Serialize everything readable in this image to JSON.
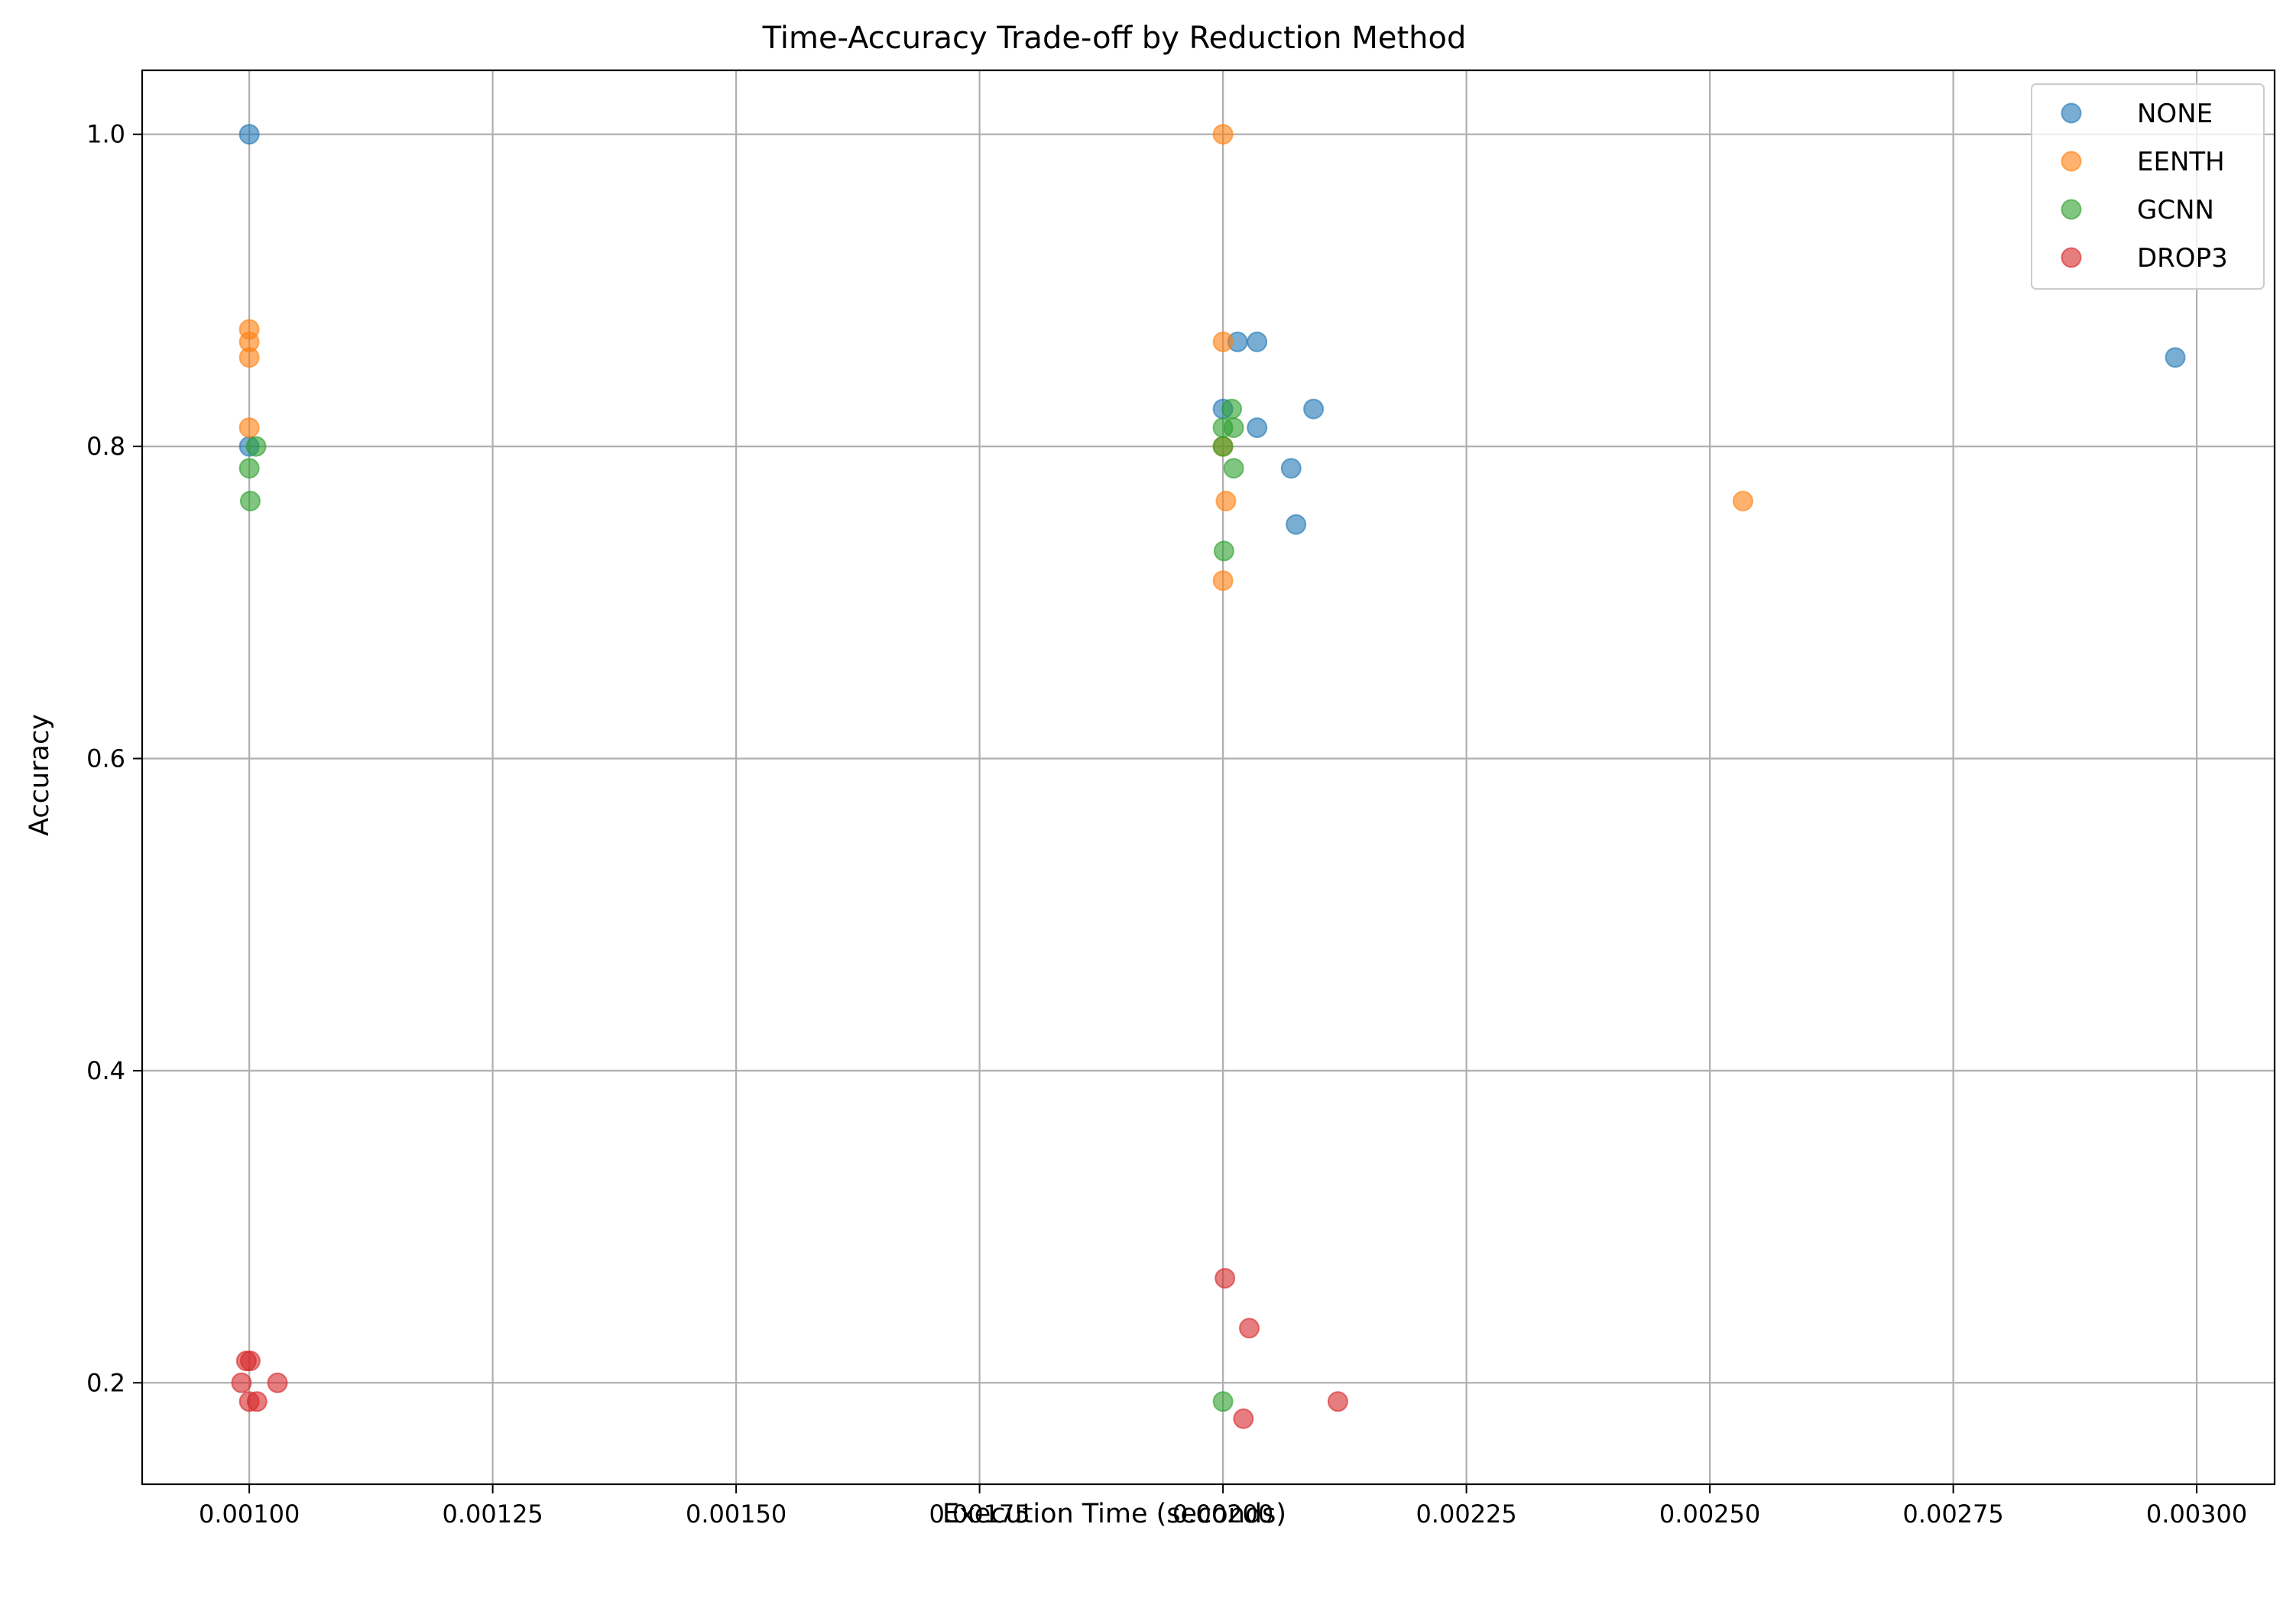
{
  "chart_data": {
    "type": "scatter",
    "title": "Time-Accuracy Trade-off by Reduction Method",
    "xlabel": "Execution Time (seconds)",
    "ylabel": "Accuracy",
    "xlim": [
      0.00089,
      0.00308
    ],
    "ylim": [
      0.135,
      1.041
    ],
    "xticks": [
      0.001,
      0.00125,
      0.0015,
      0.00175,
      0.002,
      0.00225,
      0.0025,
      0.00275,
      0.003
    ],
    "xtick_labels": [
      "0.00100",
      "0.00125",
      "0.00150",
      "0.00175",
      "0.00200",
      "0.00225",
      "0.00250",
      "0.00275",
      "0.00300"
    ],
    "yticks": [
      0.2,
      0.4,
      0.6,
      0.8,
      1.0
    ],
    "ytick_labels": [
      "0.2",
      "0.4",
      "0.6",
      "0.8",
      "1.0"
    ],
    "grid": true,
    "legend_position": "top-right",
    "marker_alpha": 0.6,
    "series": [
      {
        "name": "NONE",
        "color": "#1f77b4",
        "points": [
          [
            0.001,
            1.0
          ],
          [
            0.001,
            0.8
          ],
          [
            0.002,
            0.824
          ],
          [
            0.002015,
            0.867
          ],
          [
            0.002035,
            0.867
          ],
          [
            0.002035,
            0.812
          ],
          [
            0.00207,
            0.786
          ],
          [
            0.002075,
            0.75
          ],
          [
            0.002093,
            0.824
          ],
          [
            0.002978,
            0.857
          ]
        ]
      },
      {
        "name": "EENTH",
        "color": "#ff7f0e",
        "points": [
          [
            0.001,
            0.875
          ],
          [
            0.001,
            0.867
          ],
          [
            0.001,
            0.857
          ],
          [
            0.001,
            0.812
          ],
          [
            0.002,
            1.0
          ],
          [
            0.002,
            0.867
          ],
          [
            0.002,
            0.8
          ],
          [
            0.002003,
            0.765
          ],
          [
            0.002,
            0.714
          ],
          [
            0.002534,
            0.765
          ]
        ]
      },
      {
        "name": "GCNN",
        "color": "#2ca02c",
        "points": [
          [
            0.001007,
            0.8
          ],
          [
            0.001,
            0.786
          ],
          [
            0.001001,
            0.765
          ],
          [
            0.002009,
            0.824
          ],
          [
            0.002,
            0.812
          ],
          [
            0.002011,
            0.812
          ],
          [
            0.002,
            0.8
          ],
          [
            0.002011,
            0.786
          ],
          [
            0.002001,
            0.733
          ],
          [
            0.002,
            0.188
          ]
        ]
      },
      {
        "name": "DROP3",
        "color": "#d62728",
        "points": [
          [
            0.000997,
            0.214
          ],
          [
            0.001001,
            0.214
          ],
          [
            0.000992,
            0.2
          ],
          [
            0.001029,
            0.2
          ],
          [
            0.001,
            0.188
          ],
          [
            0.001008,
            0.188
          ],
          [
            0.002002,
            0.267
          ],
          [
            0.002027,
            0.235
          ],
          [
            0.002021,
            0.177
          ],
          [
            0.002118,
            0.188
          ]
        ]
      }
    ]
  }
}
